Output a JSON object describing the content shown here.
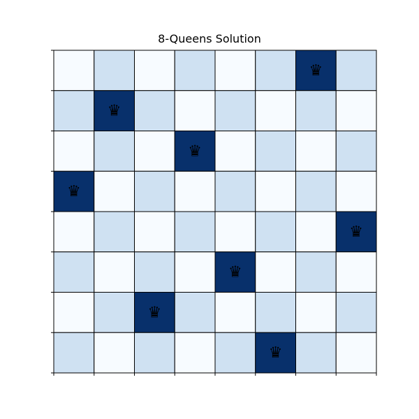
{
  "title": "8-Queens Solution",
  "board": {
    "size": 8,
    "queen_glyph": "♛",
    "queen_icon": "queen-icon",
    "queen_columns_by_row": [
      6,
      1,
      3,
      0,
      7,
      4,
      2,
      5
    ],
    "colors": {
      "light": "#f7fbff",
      "medium": "#cfe1f2",
      "queen": "#08306b",
      "grid": "#000000",
      "queen_glyph": "#000000"
    }
  }
}
